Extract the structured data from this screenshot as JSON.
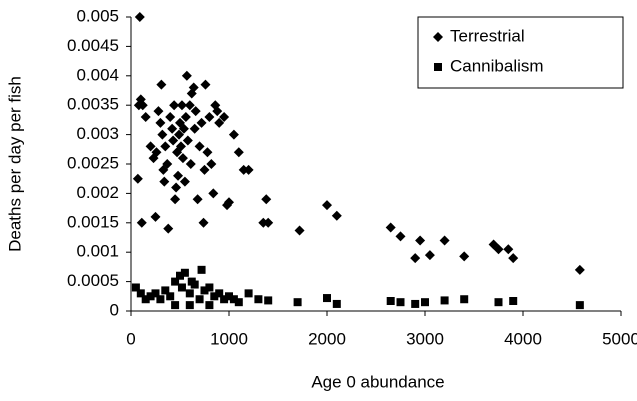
{
  "chart_data": {
    "type": "scatter",
    "xlabel": "Age 0 abundance",
    "ylabel": "Deaths per day per fish",
    "xlim": [
      0,
      5000
    ],
    "xticks": [
      0,
      1000,
      2000,
      3000,
      4000,
      5000
    ],
    "ylim": [
      0,
      0.005
    ],
    "yticks": [
      0,
      0.0005,
      0.001,
      0.0015,
      0.002,
      0.0025,
      0.003,
      0.0035,
      0.004,
      0.0045,
      0.005
    ],
    "grid": false,
    "legend": "upper right",
    "series": [
      {
        "name": "Terrestrial",
        "color": "#000000",
        "marker": "diamond",
        "x": [
          90,
          80,
          100,
          120,
          70,
          110,
          150,
          200,
          230,
          250,
          260,
          280,
          300,
          310,
          320,
          330,
          340,
          350,
          370,
          380,
          400,
          420,
          430,
          440,
          450,
          460,
          470,
          480,
          490,
          500,
          510,
          520,
          530,
          540,
          550,
          560,
          570,
          580,
          600,
          610,
          620,
          640,
          650,
          660,
          680,
          700,
          720,
          740,
          750,
          760,
          780,
          800,
          820,
          840,
          860,
          880,
          900,
          950,
          980,
          1000,
          1050,
          1100,
          1150,
          1200,
          1350,
          1380,
          1400,
          1720,
          2000,
          2100,
          2650,
          2750,
          2900,
          2950,
          3050,
          3200,
          3400,
          3700,
          3750,
          3850,
          3900,
          4580
        ],
        "values": [
          0.005,
          0.0035,
          0.0036,
          0.0035,
          0.00225,
          0.0015,
          0.0033,
          0.0028,
          0.0026,
          0.0016,
          0.0027,
          0.0034,
          0.0032,
          0.00385,
          0.003,
          0.0024,
          0.0022,
          0.0028,
          0.0025,
          0.0014,
          0.0033,
          0.0031,
          0.0029,
          0.0035,
          0.0019,
          0.0021,
          0.0027,
          0.0023,
          0.003,
          0.0032,
          0.0028,
          0.0035,
          0.0026,
          0.0031,
          0.0022,
          0.0033,
          0.004,
          0.0029,
          0.0035,
          0.0025,
          0.0037,
          0.0038,
          0.0031,
          0.0034,
          0.0019,
          0.0028,
          0.0032,
          0.0015,
          0.0024,
          0.00385,
          0.0027,
          0.0033,
          0.0025,
          0.002,
          0.0035,
          0.0034,
          0.0032,
          0.0033,
          0.0018,
          0.00185,
          0.003,
          0.0027,
          0.0024,
          0.0024,
          0.0015,
          0.0019,
          0.0015,
          0.00137,
          0.0018,
          0.00162,
          0.00142,
          0.00127,
          0.0009,
          0.0012,
          0.00095,
          0.0012,
          0.00093,
          0.00113,
          0.00105,
          0.00105,
          0.0009,
          0.0007
        ]
      },
      {
        "name": "Cannibalism",
        "color": "#000000",
        "marker": "square",
        "x": [
          50,
          100,
          150,
          200,
          250,
          300,
          350,
          400,
          450,
          500,
          520,
          550,
          600,
          620,
          650,
          700,
          720,
          750,
          800,
          850,
          900,
          950,
          1000,
          1050,
          1100,
          1200,
          1300,
          1400,
          1700,
          2000,
          2100,
          2650,
          2750,
          2900,
          3000,
          3200,
          3400,
          3750,
          3900,
          4580,
          450,
          600,
          800
        ],
        "values": [
          0.0004,
          0.0003,
          0.0002,
          0.00025,
          0.0003,
          0.0002,
          0.00035,
          0.00025,
          0.0005,
          0.0006,
          0.0004,
          0.00065,
          0.0003,
          0.0005,
          0.00045,
          0.0002,
          0.0007,
          0.00035,
          0.0004,
          0.00025,
          0.0003,
          0.0002,
          0.00025,
          0.0002,
          0.00015,
          0.0003,
          0.0002,
          0.00018,
          0.00015,
          0.00022,
          0.00012,
          0.00017,
          0.00015,
          0.00012,
          0.00015,
          0.00018,
          0.0002,
          0.00015,
          0.00017,
          0.0001,
          0.0001,
          0.0001,
          0.0001
        ]
      }
    ]
  }
}
